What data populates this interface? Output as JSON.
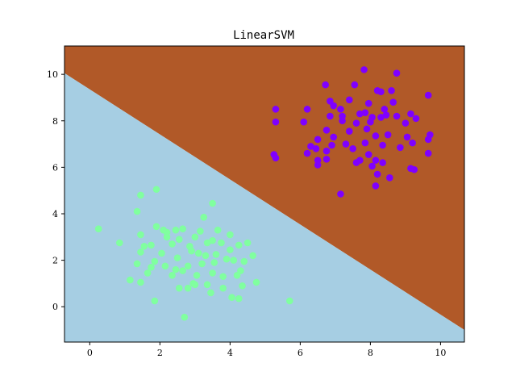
{
  "chart_data": {
    "type": "scatter",
    "title": "LinearSVM",
    "xlabel": "",
    "ylabel": "",
    "xlim": [
      -0.72,
      10.68
    ],
    "ylim": [
      -1.52,
      11.22
    ],
    "x_ticks": [
      0,
      2,
      4,
      6,
      8,
      10
    ],
    "y_ticks": [
      0,
      2,
      4,
      6,
      8,
      10
    ],
    "grid": false,
    "decision_boundary": {
      "points": [
        [
          -0.72,
          10.05
        ],
        [
          10.68,
          -1.0
        ]
      ],
      "upper_region_color": "#b15928",
      "lower_region_color": "#a6cee3"
    },
    "series": [
      {
        "color": "#7f00ff",
        "points": [
          [
            7.82,
            10.2
          ],
          [
            8.75,
            10.05
          ],
          [
            6.72,
            9.55
          ],
          [
            7.55,
            9.55
          ],
          [
            8.2,
            9.3
          ],
          [
            8.3,
            9.25
          ],
          [
            9.65,
            9.1
          ],
          [
            7.4,
            8.9
          ],
          [
            6.85,
            8.85
          ],
          [
            7.95,
            8.75
          ],
          [
            8.65,
            8.8
          ],
          [
            5.3,
            8.5
          ],
          [
            6.2,
            8.5
          ],
          [
            6.95,
            8.65
          ],
          [
            7.15,
            8.5
          ],
          [
            7.85,
            8.35
          ],
          [
            8.4,
            8.5
          ],
          [
            9.15,
            8.3
          ],
          [
            9.3,
            8.1
          ],
          [
            5.3,
            7.95
          ],
          [
            6.1,
            7.95
          ],
          [
            6.85,
            8.2
          ],
          [
            7.2,
            8.0
          ],
          [
            7.6,
            7.9
          ],
          [
            8.0,
            7.95
          ],
          [
            8.3,
            8.15
          ],
          [
            8.75,
            8.2
          ],
          [
            9.0,
            7.9
          ],
          [
            6.5,
            7.2
          ],
          [
            6.75,
            7.6
          ],
          [
            7.4,
            7.55
          ],
          [
            7.9,
            7.65
          ],
          [
            8.15,
            7.35
          ],
          [
            8.5,
            7.4
          ],
          [
            9.05,
            7.3
          ],
          [
            9.7,
            7.4
          ],
          [
            6.3,
            6.9
          ],
          [
            6.45,
            6.8
          ],
          [
            6.75,
            6.7
          ],
          [
            6.9,
            6.95
          ],
          [
            7.3,
            7.0
          ],
          [
            7.85,
            7.05
          ],
          [
            8.35,
            6.95
          ],
          [
            8.85,
            6.85
          ],
          [
            9.2,
            7.05
          ],
          [
            9.65,
            7.2
          ],
          [
            5.25,
            6.55
          ],
          [
            5.3,
            6.4
          ],
          [
            6.2,
            6.6
          ],
          [
            6.5,
            6.3
          ],
          [
            6.75,
            6.35
          ],
          [
            7.6,
            6.2
          ],
          [
            7.95,
            6.55
          ],
          [
            8.15,
            6.3
          ],
          [
            8.05,
            6.05
          ],
          [
            8.35,
            6.2
          ],
          [
            9.65,
            6.6
          ],
          [
            6.5,
            6.1
          ],
          [
            7.7,
            6.3
          ],
          [
            9.15,
            5.95
          ],
          [
            8.2,
            5.7
          ],
          [
            8.55,
            5.55
          ],
          [
            8.15,
            5.2
          ],
          [
            7.15,
            4.85
          ],
          [
            7.5,
            6.8
          ],
          [
            8.05,
            8.15
          ],
          [
            7.2,
            8.2
          ],
          [
            8.45,
            8.25
          ],
          [
            6.95,
            7.3
          ],
          [
            7.7,
            8.3
          ],
          [
            8.6,
            9.3
          ],
          [
            9.25,
            5.9
          ]
        ]
      },
      {
        "color": "#80ff9f",
        "points": [
          [
            1.9,
            5.05
          ],
          [
            1.45,
            4.8
          ],
          [
            3.5,
            4.45
          ],
          [
            1.35,
            4.1
          ],
          [
            3.25,
            3.85
          ],
          [
            0.25,
            3.35
          ],
          [
            1.9,
            3.45
          ],
          [
            2.1,
            3.3
          ],
          [
            2.45,
            3.3
          ],
          [
            2.65,
            3.35
          ],
          [
            3.15,
            3.25
          ],
          [
            3.65,
            3.3
          ],
          [
            1.45,
            3.1
          ],
          [
            2.2,
            3.0
          ],
          [
            2.55,
            2.9
          ],
          [
            3.0,
            3.0
          ],
          [
            3.5,
            2.85
          ],
          [
            4.0,
            3.1
          ],
          [
            0.85,
            2.75
          ],
          [
            1.55,
            2.6
          ],
          [
            1.75,
            2.65
          ],
          [
            2.35,
            2.7
          ],
          [
            2.85,
            2.6
          ],
          [
            3.35,
            2.75
          ],
          [
            3.75,
            2.75
          ],
          [
            4.25,
            2.65
          ],
          [
            4.5,
            2.75
          ],
          [
            1.45,
            2.35
          ],
          [
            2.05,
            2.3
          ],
          [
            2.5,
            2.1
          ],
          [
            3.1,
            2.3
          ],
          [
            3.6,
            2.25
          ],
          [
            4.0,
            2.45
          ],
          [
            4.65,
            2.2
          ],
          [
            1.35,
            1.85
          ],
          [
            1.85,
            1.95
          ],
          [
            2.15,
            1.75
          ],
          [
            2.45,
            1.6
          ],
          [
            2.8,
            1.75
          ],
          [
            3.2,
            1.85
          ],
          [
            3.55,
            1.9
          ],
          [
            4.1,
            2.0
          ],
          [
            4.4,
            1.95
          ],
          [
            1.15,
            1.15
          ],
          [
            1.65,
            1.45
          ],
          [
            2.35,
            1.35
          ],
          [
            2.65,
            1.55
          ],
          [
            3.05,
            1.35
          ],
          [
            3.5,
            1.45
          ],
          [
            3.8,
            1.3
          ],
          [
            4.2,
            1.35
          ],
          [
            1.45,
            1.05
          ],
          [
            2.55,
            0.8
          ],
          [
            2.8,
            0.8
          ],
          [
            3.0,
            0.95
          ],
          [
            3.35,
            0.95
          ],
          [
            3.8,
            0.8
          ],
          [
            4.35,
            0.9
          ],
          [
            4.75,
            1.05
          ],
          [
            3.45,
            0.6
          ],
          [
            4.05,
            0.4
          ],
          [
            4.25,
            0.35
          ],
          [
            1.85,
            0.25
          ],
          [
            5.7,
            0.25
          ],
          [
            2.7,
            -0.45
          ],
          [
            2.2,
            3.2
          ],
          [
            3.9,
            2.05
          ],
          [
            2.9,
            2.4
          ],
          [
            1.75,
            1.7
          ],
          [
            3.3,
            2.2
          ],
          [
            4.3,
            1.55
          ],
          [
            2.95,
            1.0
          ]
        ]
      }
    ]
  }
}
